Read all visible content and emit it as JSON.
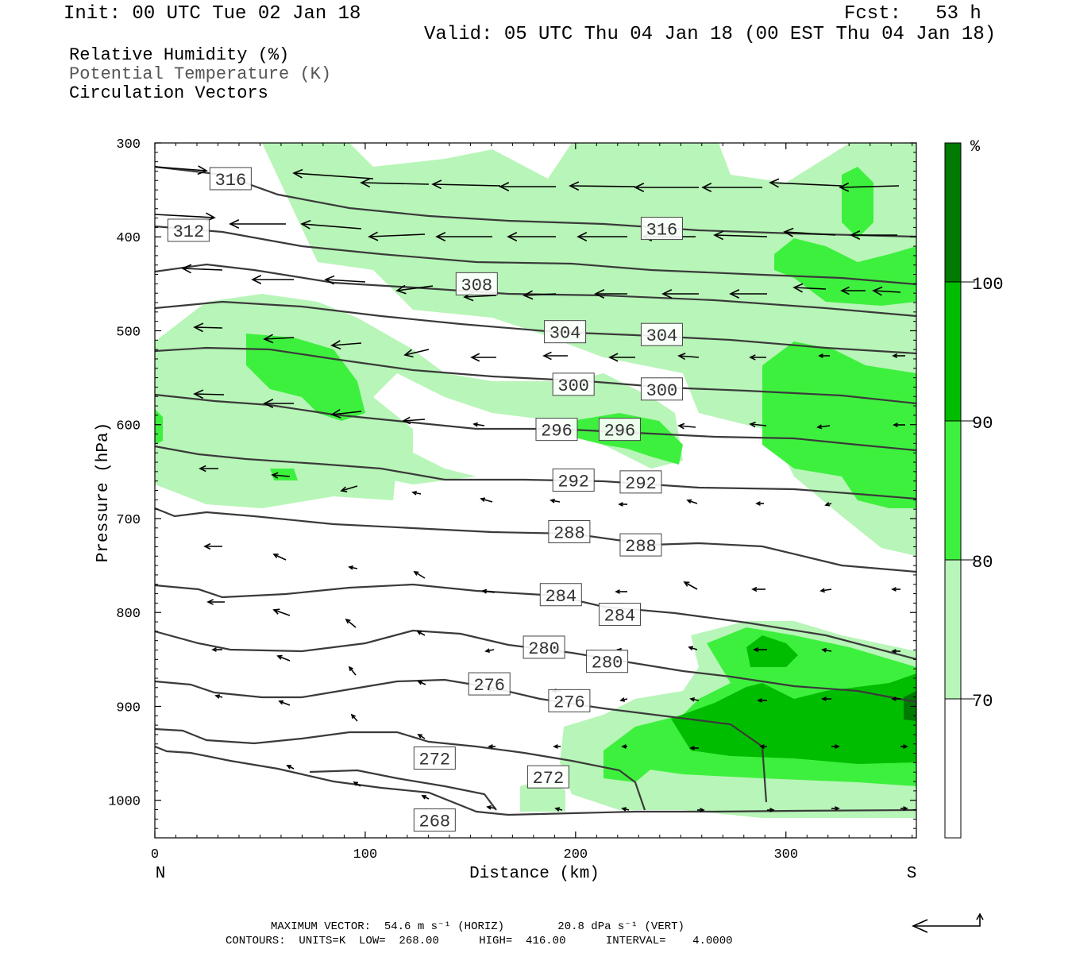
{
  "header": {
    "init": "Init: 00 UTC Tue 02 Jan 18",
    "fcst": "Fcst:   53 h",
    "valid": "Valid: 05 UTC Thu 04 Jan 18 (00 EST Thu 04 Jan 18)"
  },
  "legend": {
    "rh": "Relative Humidity (%)",
    "theta": "Potential Temperature (K)",
    "vectors": "Circulation Vectors"
  },
  "colors": {
    "rh70": "#b8f5b8",
    "rh80": "#3ef03e",
    "rh90": "#00bd00",
    "rh100": "#007a00",
    "contour": "#3a3a3a",
    "frame": "#000000"
  },
  "chart_data": {
    "type": "contour",
    "xlabel": "Distance (km)",
    "ylabel": "Pressure (hPa)",
    "xlim": [
      0,
      362
    ],
    "ylim": [
      1040,
      300
    ],
    "x_ticks": [
      0,
      100,
      200,
      300
    ],
    "y_ticks": [
      300,
      400,
      500,
      600,
      700,
      800,
      900,
      1000
    ],
    "x_end_labels": {
      "left": "N",
      "right": "S"
    },
    "colorbar": {
      "unit": "%",
      "levels": [
        70,
        80,
        90,
        100
      ],
      "labels": [
        "100",
        "90",
        "80",
        "70"
      ]
    },
    "theta_contour_labels": [
      {
        "value": "316",
        "x": 36,
        "p": 338
      },
      {
        "value": "312",
        "x": 16,
        "p": 393
      },
      {
        "value": "316",
        "x": 241,
        "p": 391
      },
      {
        "value": "308",
        "x": 153,
        "p": 450
      },
      {
        "value": "304",
        "x": 195,
        "p": 501
      },
      {
        "value": "304",
        "x": 241,
        "p": 504
      },
      {
        "value": "300",
        "x": 199,
        "p": 557
      },
      {
        "value": "300",
        "x": 241,
        "p": 562
      },
      {
        "value": "296",
        "x": 191,
        "p": 605
      },
      {
        "value": "296",
        "x": 221,
        "p": 605
      },
      {
        "value": "292",
        "x": 199,
        "p": 659
      },
      {
        "value": "292",
        "x": 231,
        "p": 661
      },
      {
        "value": "288",
        "x": 197,
        "p": 714
      },
      {
        "value": "288",
        "x": 231,
        "p": 728
      },
      {
        "value": "284",
        "x": 193,
        "p": 781
      },
      {
        "value": "284",
        "x": 221,
        "p": 802
      },
      {
        "value": "280",
        "x": 185,
        "p": 837
      },
      {
        "value": "280",
        "x": 215,
        "p": 852
      },
      {
        "value": "276",
        "x": 159,
        "p": 876
      },
      {
        "value": "276",
        "x": 197,
        "p": 894
      },
      {
        "value": "272",
        "x": 133,
        "p": 955
      },
      {
        "value": "272",
        "x": 187,
        "p": 975
      },
      {
        "value": "268",
        "x": 133,
        "p": 1021
      }
    ],
    "contours": {
      "units": "K",
      "low": 268.0,
      "high": 416.0,
      "interval": 4.0
    },
    "max_vector": {
      "horiz": "54.6 m s⁻¹",
      "vert": "20.8 dPa s⁻¹"
    }
  },
  "footer": {
    "line1": "MAXIMUM VECTOR:  54.6 m s⁻¹ (HORIZ)        20.8 dPa s⁻¹ (VERT)",
    "line2": "CONTOURS:  UNITS=K  LOW=  268.00      HIGH=  416.00      INTERVAL=    4.0000"
  }
}
